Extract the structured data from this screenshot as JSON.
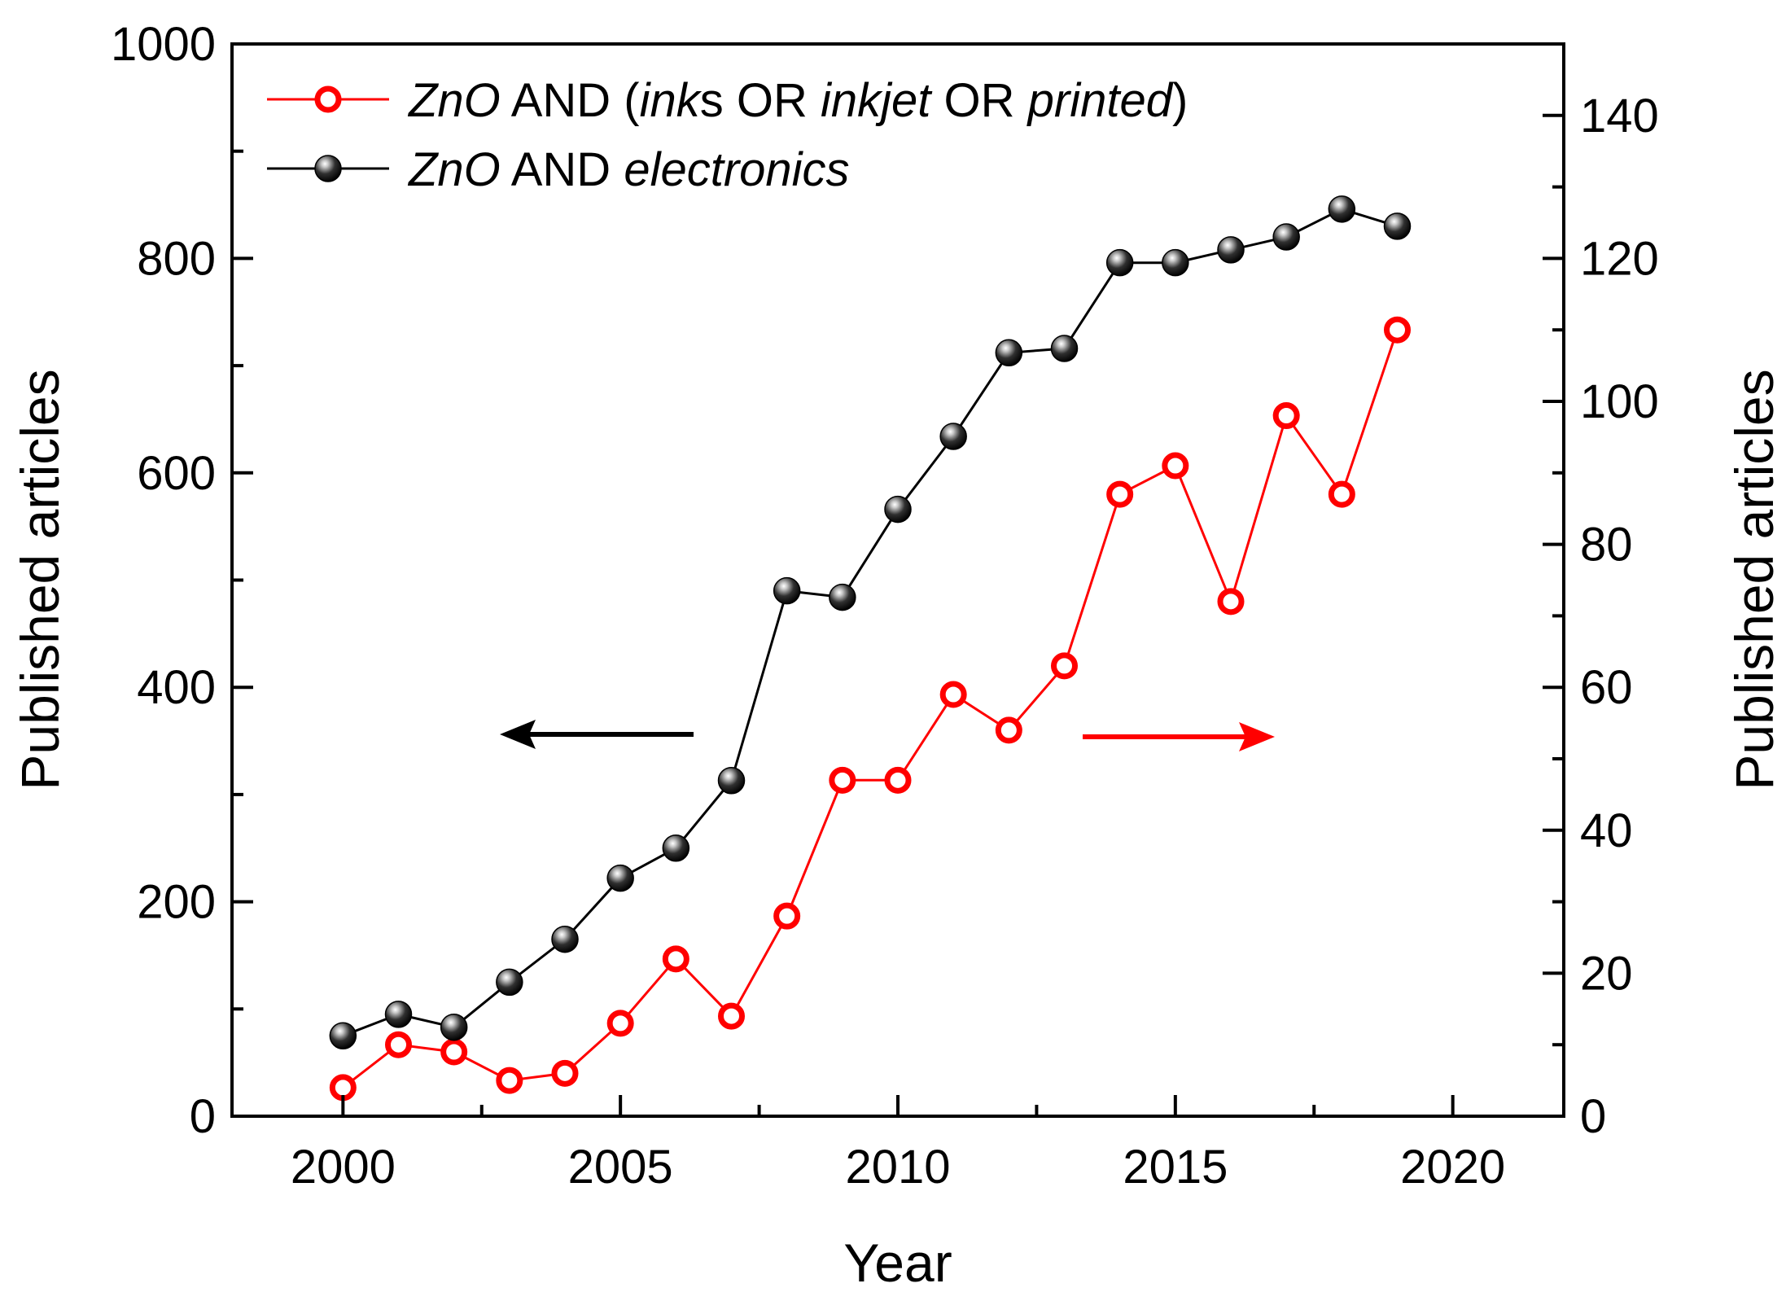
{
  "chart_data": {
    "type": "line",
    "title": "",
    "xlabel": "Year",
    "ylabel_left": "Published articles",
    "ylabel_right": "Published articles",
    "xlim": [
      1998,
      2022
    ],
    "ylim_left": [
      0,
      1000
    ],
    "ylim_right": [
      0,
      150
    ],
    "grid": false,
    "legend_position": "top-left",
    "x_ticks": [
      2000,
      2005,
      2010,
      2015,
      2020
    ],
    "y_left_ticks": [
      0,
      200,
      400,
      600,
      800,
      1000
    ],
    "y_right_ticks": [
      0,
      20,
      40,
      60,
      80,
      100,
      120,
      140
    ],
    "series": [
      {
        "name": "ZnO AND (inks OR inkjet OR printed)",
        "legend_parts": [
          {
            "text": "ZnO",
            "italic": true
          },
          {
            "text": " AND (",
            "italic": false
          },
          {
            "text": "ink",
            "italic": true
          },
          {
            "text": "s OR ",
            "italic": false
          },
          {
            "text": "inkjet",
            "italic": true
          },
          {
            "text": " OR ",
            "italic": false
          },
          {
            "text": "printed",
            "italic": true
          },
          {
            "text": ")",
            "italic": false
          }
        ],
        "axis": "right",
        "color": "#ff0000",
        "marker": "open-circle",
        "x": [
          2000,
          2001,
          2002,
          2003,
          2004,
          2005,
          2006,
          2007,
          2008,
          2009,
          2010,
          2011,
          2012,
          2013,
          2014,
          2015,
          2016,
          2017,
          2018,
          2019
        ],
        "values": [
          4,
          10,
          9,
          5,
          6,
          13,
          22,
          14,
          28,
          47,
          47,
          59,
          54,
          63,
          87,
          91,
          72,
          98,
          87,
          110
        ]
      },
      {
        "name": "ZnO AND electronics",
        "legend_parts": [
          {
            "text": "ZnO",
            "italic": true
          },
          {
            "text": " AND ",
            "italic": false
          },
          {
            "text": "electronics",
            "italic": true
          }
        ],
        "axis": "left",
        "color": "#000000",
        "marker": "filled-sphere",
        "x": [
          2000,
          2001,
          2002,
          2003,
          2004,
          2005,
          2006,
          2007,
          2008,
          2009,
          2010,
          2011,
          2012,
          2013,
          2014,
          2015,
          2016,
          2017,
          2018,
          2019
        ],
        "values": [
          75,
          95,
          83,
          125,
          165,
          222,
          250,
          313,
          490,
          484,
          566,
          634,
          712,
          716,
          796,
          796,
          808,
          820,
          846,
          830
        ]
      }
    ],
    "annotations": [
      {
        "type": "arrow",
        "direction": "left",
        "color": "#000000",
        "meaning": "black series uses left axis"
      },
      {
        "type": "arrow",
        "direction": "right",
        "color": "#ff0000",
        "meaning": "red series uses right axis"
      }
    ]
  }
}
